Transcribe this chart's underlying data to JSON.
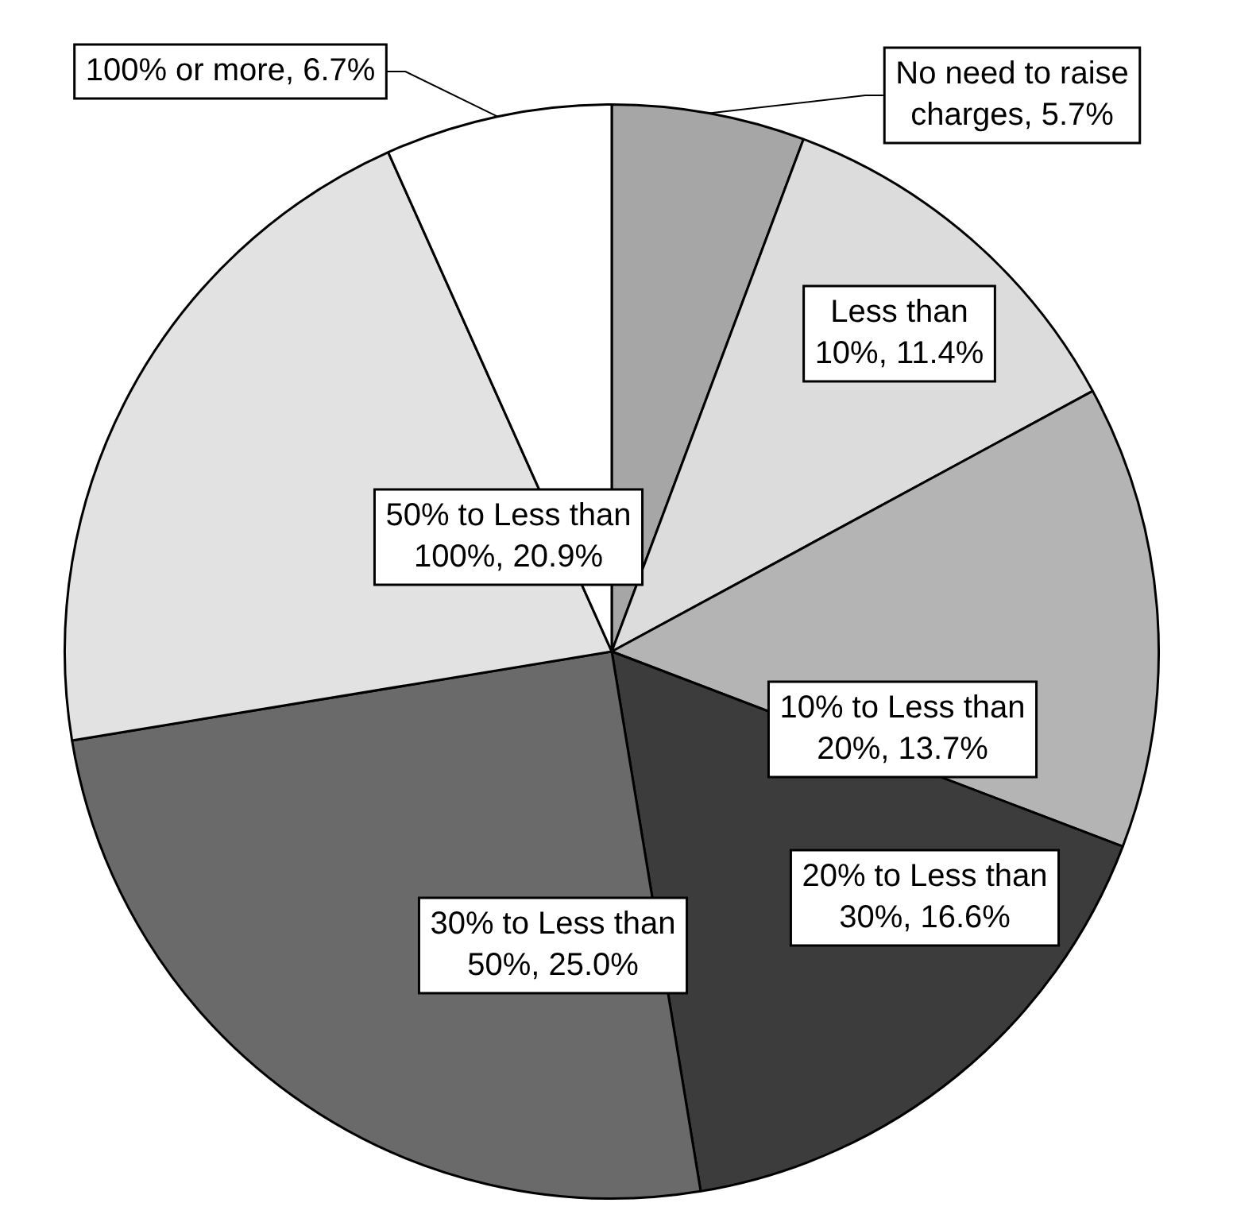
{
  "chart_data": {
    "type": "pie",
    "categories": [
      "No need to raise charges",
      "Less than 10%",
      "10% to Less than 20%",
      "20% to Less than 30%",
      "30% to Less than 50%",
      "50% to Less than 100%",
      "100% or more"
    ],
    "value_labels": [
      "5.7%",
      "11.4%",
      "13.7%",
      "16.6%",
      "25.0%",
      "20.9%",
      "6.7%"
    ],
    "values": [
      5.7,
      11.4,
      13.7,
      16.6,
      25.0,
      20.9,
      6.7
    ],
    "colors": [
      "#a6a6a6",
      "#dcdcdc",
      "#b4b4b4",
      "#3c3c3c",
      "#6a6a6a",
      "#e2e2e2",
      "#ffffff"
    ],
    "legend": false
  }
}
